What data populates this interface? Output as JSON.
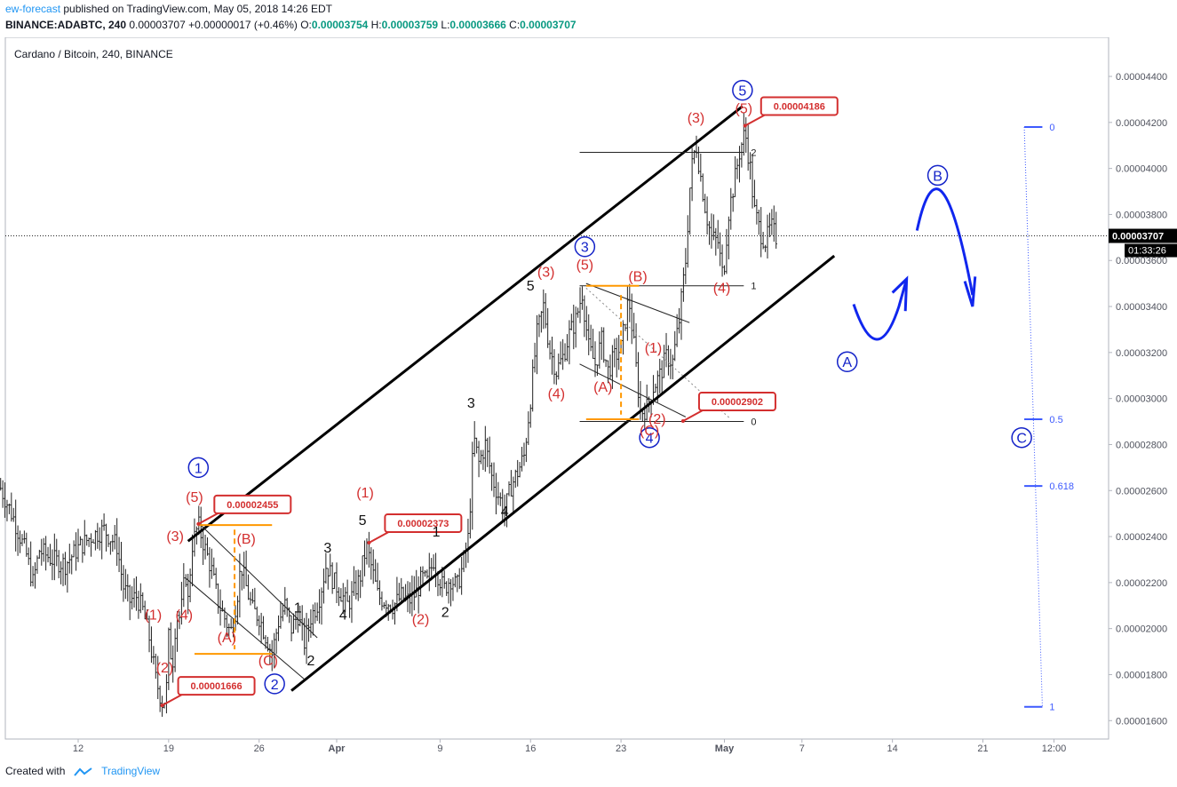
{
  "header": {
    "author": "ew-forecast",
    "published_text": "published on TradingView.com, May 05, 2018 14:26 EDT",
    "symbol": "BINANCE:ADABTC, 240",
    "last": "0.00003707",
    "change": "+0.00000017 (+0.46%)",
    "o_label": "O:",
    "o_value": "0.00003754",
    "h_label": "H:",
    "h_value": "0.00003759",
    "l_label": "L:",
    "l_value": "0.00003666",
    "c_label": "C:",
    "c_value": "0.00003707"
  },
  "footer": {
    "created_with": "Created with",
    "brand": "TradingView"
  },
  "chart_data": {
    "type": "candlestick",
    "title": "Cardano / Bitcoin, 240, BINANCE",
    "ylim": [
      1.52e-05,
      4.57e-05
    ],
    "y_ticks": [
      "0.00004400",
      "0.00004200",
      "0.00004000",
      "0.00003800",
      "0.00003600",
      "0.00003400",
      "0.00003200",
      "0.00003000",
      "0.00002800",
      "0.00002600",
      "0.00002400",
      "0.00002200",
      "0.00002000",
      "0.00001800",
      "0.00001600"
    ],
    "x_ticks": [
      {
        "label": "12",
        "day": 12.0
      },
      {
        "label": "19",
        "day": 19.0
      },
      {
        "label": "26",
        "day": 26.0
      },
      {
        "label": "Apr",
        "day": 32.0
      },
      {
        "label": "9",
        "day": 40.0
      },
      {
        "label": "16",
        "day": 47.0
      },
      {
        "label": "23",
        "day": 54.0
      },
      {
        "label": "May",
        "day": 62.0
      },
      {
        "label": "7",
        "day": 68.0
      },
      {
        "label": "14",
        "day": 75.0
      },
      {
        "label": "21",
        "day": 82.0
      },
      {
        "label": "12:00",
        "day": 87.5
      }
    ],
    "last_price_label": "0.00003707",
    "last_price_value": 3.707e-05,
    "countdown": "01:33:26",
    "price_path": [
      [
        6.0,
        2.61e-05
      ],
      [
        7.0,
        2.48e-05
      ],
      [
        8.0,
        2.32e-05
      ],
      [
        8.5,
        2.2e-05
      ],
      [
        9.0,
        2.34e-05
      ],
      [
        10.0,
        2.3e-05
      ],
      [
        11.0,
        2.28e-05
      ],
      [
        12.0,
        2.35e-05
      ],
      [
        13.0,
        2.4e-05
      ],
      [
        14.0,
        2.43e-05
      ],
      [
        15.0,
        2.36e-05
      ],
      [
        15.5,
        2.18e-05
      ],
      [
        16.0,
        2.12e-05
      ],
      [
        16.5,
        2.14e-05
      ],
      [
        17.0,
        2.08e-05
      ],
      [
        17.5,
        1.96e-05
      ],
      [
        18.0,
        1.78e-05
      ],
      [
        18.5,
        1.68e-05
      ],
      [
        18.8,
        1.7e-05
      ],
      [
        19.0,
        1.96e-05
      ],
      [
        19.3,
        1.84e-05
      ],
      [
        19.6,
        2.08e-05
      ],
      [
        19.9,
        2.04e-05
      ],
      [
        20.3,
        2.25e-05
      ],
      [
        20.5,
        2.12e-05
      ],
      [
        20.8,
        2.36e-05
      ],
      [
        21.3,
        2.45e-05
      ],
      [
        21.8,
        2.35e-05
      ],
      [
        22.3,
        2.26e-05
      ],
      [
        22.8,
        2.12e-05
      ],
      [
        23.3,
        2.05e-05
      ],
      [
        23.8,
        1.98e-05
      ],
      [
        24.3,
        2.14e-05
      ],
      [
        24.6,
        2.28e-05
      ],
      [
        25.0,
        2.18e-05
      ],
      [
        25.5,
        2.08e-05
      ],
      [
        26.0,
        2.05e-05
      ],
      [
        26.5,
        1.97e-05
      ],
      [
        27.0,
        1.89e-05
      ],
      [
        27.5,
        2.03e-05
      ],
      [
        28.0,
        2.1e-05
      ],
      [
        28.5,
        2e-05
      ],
      [
        29.0,
        2.06e-05
      ],
      [
        29.5,
        1.94e-05
      ],
      [
        30.0,
        2.05e-05
      ],
      [
        30.6,
        2.12e-05
      ],
      [
        31.2,
        2.28e-05
      ],
      [
        31.8,
        2.2e-05
      ],
      [
        32.3,
        2.16e-05
      ],
      [
        32.8,
        2.1e-05
      ],
      [
        33.2,
        2.14e-05
      ],
      [
        33.8,
        2.22e-05
      ],
      [
        34.3,
        2.36e-05
      ],
      [
        34.8,
        2.24e-05
      ],
      [
        35.2,
        2.14e-05
      ],
      [
        35.8,
        2.12e-05
      ],
      [
        36.4,
        2.1e-05
      ],
      [
        37.0,
        2.14e-05
      ],
      [
        37.6,
        2.12e-05
      ],
      [
        38.2,
        2.16e-05
      ],
      [
        38.6,
        2.22e-05
      ],
      [
        39.0,
        2.2e-05
      ],
      [
        39.5,
        2.3e-05
      ],
      [
        39.8,
        2.24e-05
      ],
      [
        40.3,
        2.17e-05
      ],
      [
        40.8,
        2.22e-05
      ],
      [
        41.3,
        2.18e-05
      ],
      [
        41.8,
        2.28e-05
      ],
      [
        42.2,
        2.4e-05
      ],
      [
        42.6,
        2.83e-05
      ],
      [
        43.0,
        2.72e-05
      ],
      [
        43.5,
        2.8e-05
      ],
      [
        44.0,
        2.66e-05
      ],
      [
        44.5,
        2.58e-05
      ],
      [
        45.0,
        2.51e-05
      ],
      [
        45.5,
        2.62e-05
      ],
      [
        46.0,
        2.68e-05
      ],
      [
        46.5,
        2.75e-05
      ],
      [
        47.0,
        3e-05
      ],
      [
        47.5,
        3.28e-05
      ],
      [
        48.0,
        3.4e-05
      ],
      [
        48.5,
        3.21e-05
      ],
      [
        49.0,
        3.12e-05
      ],
      [
        49.5,
        3.18e-05
      ],
      [
        50.0,
        3.28e-05
      ],
      [
        50.5,
        3.34e-05
      ],
      [
        51.0,
        3.46e-05
      ],
      [
        51.5,
        3.22e-05
      ],
      [
        52.0,
        3.15e-05
      ],
      [
        52.5,
        3.25e-05
      ],
      [
        53.0,
        3.12e-05
      ],
      [
        53.5,
        3.18e-05
      ],
      [
        54.0,
        3.22e-05
      ],
      [
        54.6,
        3.44e-05
      ],
      [
        55.0,
        3.23e-05
      ],
      [
        55.5,
        2.94e-05
      ],
      [
        56.0,
        2.96e-05
      ],
      [
        56.5,
        3.05e-05
      ],
      [
        57.0,
        3.1e-05
      ],
      [
        57.5,
        3.18e-05
      ],
      [
        58.0,
        3.16e-05
      ],
      [
        58.5,
        3.34e-05
      ],
      [
        59.0,
        3.6e-05
      ],
      [
        59.4,
        3.98e-05
      ],
      [
        59.8,
        4.11e-05
      ],
      [
        60.2,
        3.95e-05
      ],
      [
        60.6,
        3.8e-05
      ],
      [
        61.0,
        3.7e-05
      ],
      [
        61.5,
        3.68e-05
      ],
      [
        61.9,
        3.52e-05
      ],
      [
        62.3,
        3.8e-05
      ],
      [
        62.8,
        3.95e-05
      ],
      [
        63.2,
        4.08e-05
      ],
      [
        63.6,
        4.16e-05
      ],
      [
        64.0,
        4e-05
      ],
      [
        64.3,
        3.82e-05
      ],
      [
        64.8,
        3.72e-05
      ],
      [
        65.2,
        3.68e-05
      ],
      [
        65.6,
        3.75e-05
      ],
      [
        66.0,
        3.7e-05
      ]
    ],
    "channels": [
      {
        "type": "upper",
        "start": [
          20.5,
          2.38e-05
        ],
        "end": [
          63.4,
          4.27e-05
        ]
      },
      {
        "type": "lower",
        "start": [
          28.5,
          1.73e-05
        ],
        "end": [
          70.5,
          3.62e-05
        ]
      }
    ],
    "price_labels": [
      {
        "text": "0.00004186",
        "day": 63.6,
        "price": 4.186e-05
      },
      {
        "text": "0.00002902",
        "day": 58.8,
        "price": 2.902e-05
      },
      {
        "text": "0.00002455",
        "day": 21.3,
        "price": 2.455e-05
      },
      {
        "text": "0.00002373",
        "day": 34.5,
        "price": 2.373e-05
      },
      {
        "text": "0.00001666",
        "day": 18.5,
        "price": 1.666e-05
      }
    ],
    "fib_levels": [
      {
        "label": "2",
        "price": 4.07e-05
      },
      {
        "label": "1",
        "price": 3.49e-05
      },
      {
        "label": "0",
        "price": 2.9e-05
      }
    ],
    "projection_levels": [
      {
        "label": "0",
        "price": 4.18e-05
      },
      {
        "label": "0.5",
        "price": 2.91e-05
      },
      {
        "label": "0.618",
        "price": 2.62e-05
      },
      {
        "label": "1",
        "price": 1.66e-05
      }
    ],
    "wave_labels": {
      "primary": [
        {
          "text": "1",
          "day": 21.3,
          "price": 2.7e-05
        },
        {
          "text": "2",
          "day": 27.2,
          "price": 1.76e-05
        },
        {
          "text": "3",
          "day": 51.2,
          "price": 3.66e-05
        },
        {
          "text": "4",
          "day": 56.2,
          "price": 2.83e-05
        },
        {
          "text": "5",
          "day": 63.4,
          "price": 4.34e-05
        },
        {
          "text": "A",
          "day": 71.5,
          "price": 3.16e-05
        },
        {
          "text": "B",
          "day": 78.5,
          "price": 3.97e-05
        },
        {
          "text": "C",
          "day": 85.0,
          "price": 2.83e-05
        }
      ],
      "intermediate": [
        {
          "text": "(1)",
          "day": 17.8,
          "price": 2.04e-05
        },
        {
          "text": "(2)",
          "day": 18.7,
          "price": 1.81e-05
        },
        {
          "text": "(3)",
          "day": 19.5,
          "price": 2.38e-05
        },
        {
          "text": "(4)",
          "day": 20.2,
          "price": 2.04e-05
        },
        {
          "text": "(5)",
          "day": 21.0,
          "price": 2.55e-05
        },
        {
          "text": "(A)",
          "day": 23.5,
          "price": 1.94e-05
        },
        {
          "text": "(B)",
          "day": 25.0,
          "price": 2.37e-05
        },
        {
          "text": "(C)",
          "day": 26.7,
          "price": 1.84e-05
        },
        {
          "text": "(1)",
          "day": 34.2,
          "price": 2.57e-05
        },
        {
          "text": "(2)",
          "day": 38.5,
          "price": 2.02e-05
        },
        {
          "text": "(3)",
          "day": 48.2,
          "price": 3.53e-05
        },
        {
          "text": "(4)",
          "day": 49.0,
          "price": 3e-05
        },
        {
          "text": "(5)",
          "day": 51.2,
          "price": 3.56e-05
        },
        {
          "text": "(A)",
          "day": 52.6,
          "price": 3.03e-05
        },
        {
          "text": "(B)",
          "day": 55.3,
          "price": 3.51e-05
        },
        {
          "text": "(1)",
          "day": 56.5,
          "price": 3.2e-05
        },
        {
          "text": "(2)",
          "day": 56.8,
          "price": 2.89e-05
        },
        {
          "text": "(C)",
          "day": 56.2,
          "price": 2.84e-05
        },
        {
          "text": "(3)",
          "day": 59.8,
          "price": 4.2e-05
        },
        {
          "text": "(4)",
          "day": 61.8,
          "price": 3.46e-05
        },
        {
          "text": "(5)",
          "day": 63.5,
          "price": 4.24e-05
        }
      ],
      "minor": [
        {
          "text": "1",
          "day": 29.0,
          "price": 2.07e-05
        },
        {
          "text": "2",
          "day": 30.0,
          "price": 1.84e-05
        },
        {
          "text": "3",
          "day": 31.3,
          "price": 2.33e-05
        },
        {
          "text": "4",
          "day": 32.5,
          "price": 2.04e-05
        },
        {
          "text": "5",
          "day": 34.0,
          "price": 2.45e-05
        },
        {
          "text": "1",
          "day": 39.7,
          "price": 2.4e-05
        },
        {
          "text": "2",
          "day": 40.4,
          "price": 2.05e-05
        },
        {
          "text": "3",
          "day": 42.4,
          "price": 2.96e-05
        },
        {
          "text": "4",
          "day": 45.0,
          "price": 2.49e-05
        },
        {
          "text": "5",
          "day": 47.0,
          "price": 3.47e-05
        }
      ]
    },
    "colors": {
      "impulse": "#d32f2f",
      "primary": "#1322c8",
      "minor": "#111111",
      "accent": "#ff9800",
      "projection": "#3d5afe"
    }
  }
}
